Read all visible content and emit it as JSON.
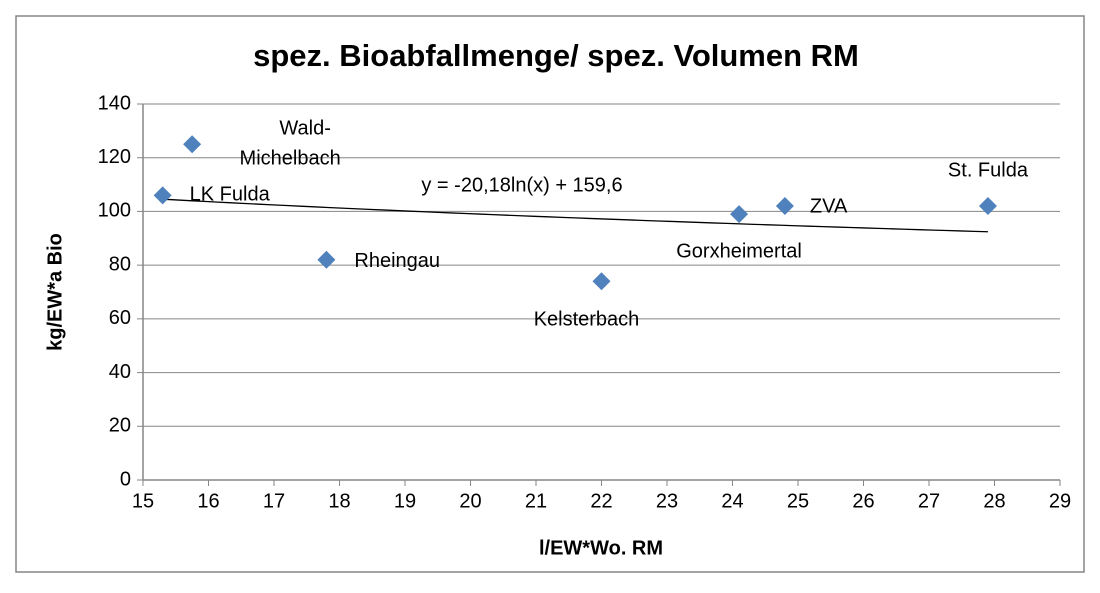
{
  "chart_data": {
    "type": "scatter",
    "title": "spez. Bioabfallmenge/ spez. Volumen RM",
    "xlabel": "l/EW*Wo. RM",
    "ylabel": "kg/EW*a Bio",
    "series": [
      {
        "color": "#4f81bd",
        "x": [
          15.3,
          15.75,
          17.8,
          22,
          24.1,
          24.8,
          27.9
        ],
        "values": [
          106,
          125,
          82,
          74,
          99,
          102,
          102
        ],
        "point_labels": [
          "LK Fulda",
          "Wald-Michelbach",
          "Rheingau",
          "Kelsterbach",
          "Gorxheimertal",
          "ZVA",
          "St. Fulda"
        ]
      }
    ],
    "trendline": {
      "label": "y = -20,18ln(x) + 159,6",
      "a": -20.18,
      "b": 159.6,
      "color": "#000000"
    },
    "xlim": [
      15,
      29
    ],
    "xticks": [
      15,
      16,
      17,
      18,
      19,
      20,
      21,
      22,
      23,
      24,
      25,
      26,
      27,
      28,
      29
    ],
    "ylim": [
      0,
      140
    ],
    "yticks": [
      0,
      20,
      40,
      60,
      80,
      100,
      120,
      140
    ],
    "grid": true
  }
}
